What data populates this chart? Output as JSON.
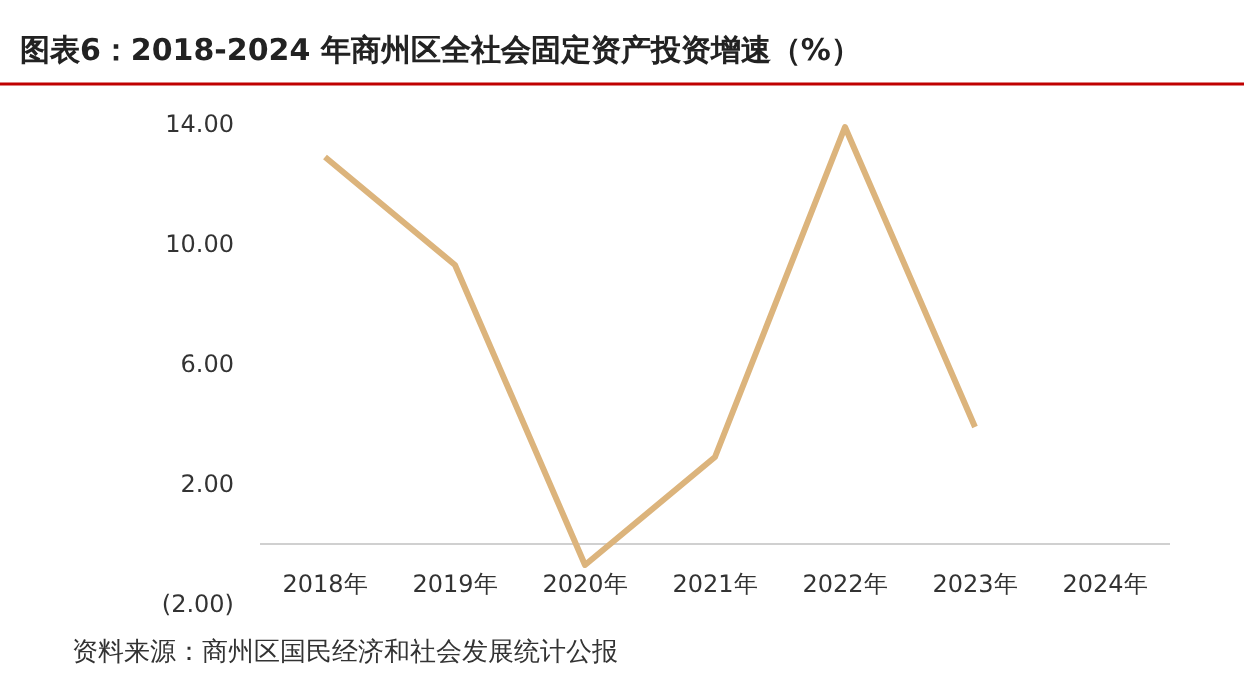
{
  "chart_data": {
    "type": "line",
    "title": "图表6：2018-2024 年商州区全社会固定资产投资增速（%）",
    "categories": [
      "2018年",
      "2019年",
      "2020年",
      "2021年",
      "2022年",
      "2023年",
      "2024年"
    ],
    "series": [
      {
        "color": "#dcb47c",
        "values": [
          12.9,
          9.3,
          -0.7,
          2.9,
          13.9,
          3.9,
          null
        ]
      }
    ],
    "ylim": [
      -2,
      14
    ],
    "yticks": [
      {
        "value": -2,
        "label": "(2.00)"
      },
      {
        "value": 2,
        "label": "2.00"
      },
      {
        "value": 6,
        "label": "6.00"
      },
      {
        "value": 10,
        "label": "10.00"
      },
      {
        "value": 14,
        "label": "14.00"
      }
    ],
    "grid": false,
    "marker": "none",
    "line_style": "solid",
    "annotations": [
      "资料来源：商州区国民经济和社会发展统计公报"
    ]
  }
}
